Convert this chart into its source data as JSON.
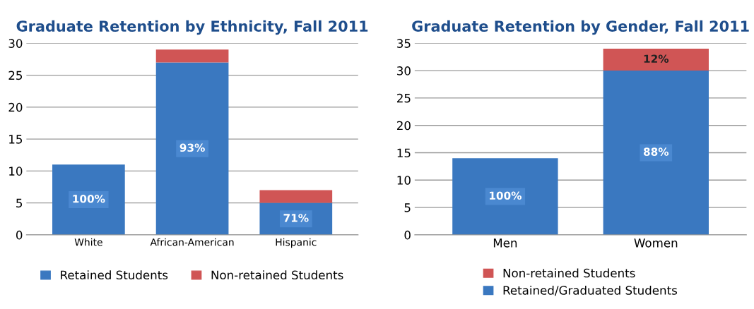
{
  "chart_data": [
    {
      "type": "bar",
      "title": "Graduate Retention by Ethnicity, Fall 2011",
      "categories": [
        "White",
        "African-American",
        "Hispanic"
      ],
      "stacked": true,
      "series": [
        {
          "name": "Retained Students",
          "color": "#3a78c0",
          "values": [
            11,
            27,
            5
          ]
        },
        {
          "name": "Non-retained Students",
          "color": "#d05555",
          "values": [
            0,
            2,
            2
          ]
        }
      ],
      "annotations": [
        "100%",
        "93%",
        "71%"
      ],
      "ylim": [
        0,
        30
      ],
      "yticks": [
        0,
        5,
        10,
        15,
        20,
        25,
        30
      ],
      "grid": "y",
      "legend": "bottom"
    },
    {
      "type": "bar",
      "title": "Graduate Retention by Gender, Fall 2011",
      "categories": [
        "Men",
        "Women"
      ],
      "stacked": true,
      "series": [
        {
          "name": "Retained/Graduated Students",
          "color": "#3a78c0",
          "values": [
            14,
            30
          ]
        },
        {
          "name": "Non-retained Students",
          "color": "#d05555",
          "values": [
            0,
            4
          ]
        }
      ],
      "annotations": [
        "100%",
        "88%",
        "12%"
      ],
      "ylim": [
        0,
        35
      ],
      "yticks": [
        0,
        5,
        10,
        15,
        20,
        25,
        30,
        35
      ],
      "grid": "y",
      "legend": "bottom"
    }
  ]
}
